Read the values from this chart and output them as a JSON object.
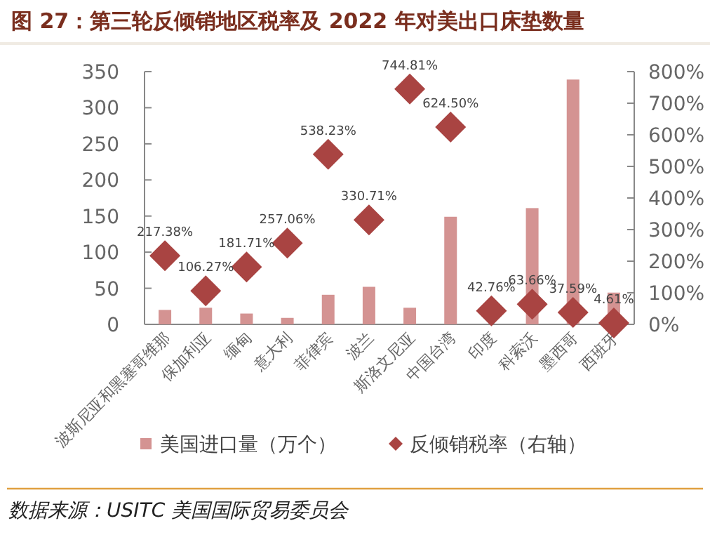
{
  "chart_data": {
    "type": "bar",
    "title": "图 27：第三轮反倾销地区税率及 2022 年对美出口床垫数量",
    "categories": [
      "波斯尼亚和黑塞哥维那",
      "保加利亚",
      "缅甸",
      "意大利",
      "菲律宾",
      "波兰",
      "斯洛文尼亚",
      "中国台湾",
      "印度",
      "科索沃",
      "墨西哥",
      "西班牙"
    ],
    "series": [
      {
        "name": "美国进口量（万个）",
        "color": "#d49392",
        "values": [
          20,
          23,
          15,
          9,
          41,
          52,
          23,
          149,
          null,
          161,
          339,
          44
        ]
      },
      {
        "name": "反倾销税率（右轴）",
        "type": "scatter",
        "axis": "y2",
        "marker": "diamond",
        "color": "#a94442",
        "values": [
          217.38,
          106.27,
          181.71,
          257.06,
          538.23,
          330.71,
          744.81,
          624.5,
          42.76,
          63.66,
          37.59,
          4.61
        ],
        "value_labels": [
          "217.38%",
          "106.27%",
          "181.71%",
          "257.06%",
          "538.23%",
          "330.71%",
          "744.81%",
          "624.50%",
          "42.76%",
          "63.66%",
          "37.59%",
          "4.61%"
        ]
      }
    ],
    "ylim": [
      0,
      350
    ],
    "yticks": [
      0,
      50,
      100,
      150,
      200,
      250,
      300,
      350
    ],
    "y2lim": [
      0,
      800
    ],
    "y2ticks": [
      {
        "value": 0,
        "label": "0%"
      },
      {
        "value": 100,
        "label": "100%"
      },
      {
        "value": 200,
        "label": "200%"
      },
      {
        "value": 300,
        "label": "300%"
      },
      {
        "value": 400,
        "label": "400%"
      },
      {
        "value": 500,
        "label": "500%"
      },
      {
        "value": 600,
        "label": "600%"
      },
      {
        "value": 700,
        "label": "700%"
      },
      {
        "value": 800,
        "label": "800%"
      }
    ],
    "grid": false,
    "legend": "bottom",
    "annotations": [
      "数据来源：USITC 美国国际贸易委员会"
    ]
  }
}
